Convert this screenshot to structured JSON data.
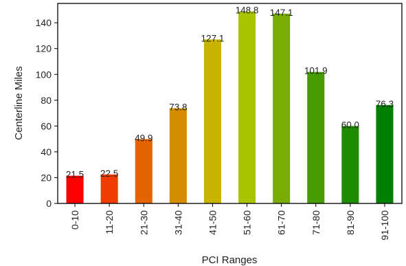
{
  "chart_data": {
    "type": "bar",
    "categories": [
      "0-10",
      "11-20",
      "21-30",
      "31-40",
      "41-50",
      "51-60",
      "61-70",
      "71-80",
      "81-90",
      "91-100"
    ],
    "values": [
      21.5,
      22.5,
      49.9,
      73.8,
      127.1,
      148.8,
      147.1,
      101.9,
      60.0,
      76.3
    ],
    "data_labels": [
      "21.5",
      "22.5",
      "49.9",
      "73.8",
      "127.1",
      "148.8",
      "147.1",
      "101.9",
      "60.0",
      "76.3"
    ],
    "colors": [
      "#ff0000",
      "#f03c00",
      "#e46400",
      "#d68c00",
      "#c8b400",
      "#a8c400",
      "#78ac00",
      "#469c00",
      "#1e8c00",
      "#008000"
    ],
    "title": "",
    "xlabel": "PCI Ranges",
    "ylabel": "Centerline Miles",
    "ylim": [
      0,
      155
    ],
    "yticks": [
      0,
      20,
      40,
      60,
      80,
      100,
      120,
      140
    ],
    "grid": false,
    "legend": "none"
  }
}
